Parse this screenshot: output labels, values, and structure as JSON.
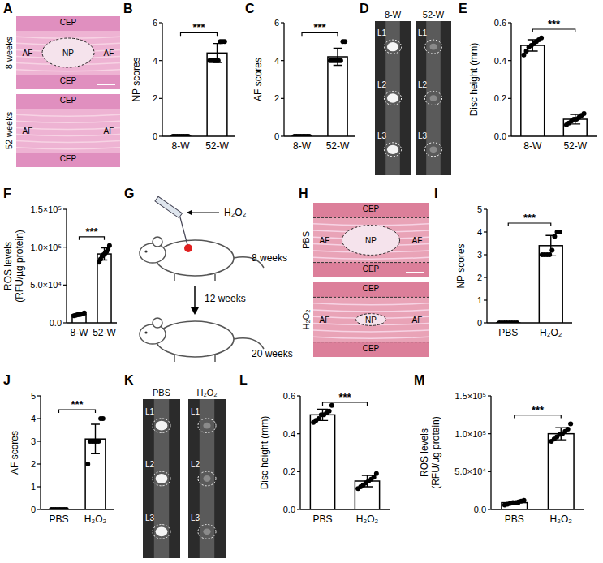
{
  "chart_data": [
    {
      "type": "bar",
      "panel": "B",
      "ylabel": "NP scores",
      "categories": [
        "8-W",
        "52-W"
      ],
      "values": [
        0,
        4.4
      ],
      "errors": [
        0,
        0.5
      ],
      "points": [
        [
          0,
          0,
          0,
          0,
          0,
          0,
          0,
          0
        ],
        [
          4,
          4,
          4,
          4,
          4,
          5,
          5,
          5
        ]
      ],
      "color": "#000000",
      "ylim": [
        0,
        6
      ],
      "yticks": [
        0,
        2,
        4,
        6
      ],
      "significance": "***"
    },
    {
      "type": "bar",
      "panel": "C",
      "ylabel": "AF scores",
      "categories": [
        "8-W",
        "52-W"
      ],
      "values": [
        0,
        4.2
      ],
      "errors": [
        0,
        0.45
      ],
      "points": [
        [
          0,
          0,
          0,
          0,
          0,
          0,
          0,
          0
        ],
        [
          4,
          4,
          4,
          4,
          4,
          4,
          5,
          5
        ]
      ],
      "color": "#000000",
      "ylim": [
        0,
        6
      ],
      "yticks": [
        0,
        2,
        4,
        6
      ],
      "significance": "***"
    },
    {
      "type": "bar",
      "panel": "E",
      "ylabel": "Disc height (mm)",
      "categories": [
        "8-W",
        "52-W"
      ],
      "values": [
        0.48,
        0.09
      ],
      "errors": [
        0.03,
        0.025
      ],
      "points": [
        [
          0.43,
          0.45,
          0.47,
          0.48,
          0.49,
          0.5,
          0.51,
          0.52
        ],
        [
          0.06,
          0.07,
          0.08,
          0.09,
          0.09,
          0.1,
          0.11,
          0.12
        ]
      ],
      "color": "#000000",
      "ylim": [
        0,
        0.6
      ],
      "yticks": [
        {
          "value": 0,
          "label": "0.0"
        },
        0.2,
        0.4,
        0.6
      ],
      "significance": "***"
    },
    {
      "type": "bar",
      "panel": "F",
      "ylabel": [
        "ROS levels",
        "(RFU/µg protein)"
      ],
      "categories": [
        "8-W",
        "52-W"
      ],
      "values": [
        11000,
        91000
      ],
      "errors": [
        1500,
        8000
      ],
      "points": [
        [
          9500,
          10000,
          10500,
          11000,
          11000,
          11500,
          12000,
          13000
        ],
        [
          80000,
          84000,
          88000,
          90000,
          92000,
          94000,
          97000,
          102000
        ]
      ],
      "color": "#000000",
      "ylim": [
        0,
        150000
      ],
      "yticks": [
        {
          "value": 0,
          "label": "0.0"
        },
        {
          "value": 50000,
          "label": "5.0×10⁴"
        },
        {
          "value": 100000,
          "label": "1.0×10⁵"
        },
        {
          "value": 150000,
          "label": "1.5×10⁵"
        }
      ],
      "significance": "***"
    },
    {
      "type": "bar",
      "panel": "I",
      "ylabel": "NP scores",
      "categories": [
        "PBS",
        "H₂O₂"
      ],
      "values": [
        0,
        3.4
      ],
      "errors": [
        0,
        0.45
      ],
      "points": [
        [
          0,
          0,
          0,
          0,
          0,
          0,
          0,
          0
        ],
        [
          3,
          3,
          3,
          3,
          3.2,
          3.8,
          4,
          4
        ]
      ],
      "color": "#000000",
      "ylim": [
        0,
        5
      ],
      "yticks": [
        0,
        1,
        2,
        3,
        4,
        5
      ],
      "significance": "***"
    },
    {
      "type": "bar",
      "panel": "J",
      "ylabel": "AF scores",
      "categories": [
        "PBS",
        "H₂O₂"
      ],
      "values": [
        0,
        3.1
      ],
      "errors": [
        0,
        0.65
      ],
      "points": [
        [
          0,
          0,
          0,
          0,
          0,
          0,
          0,
          0
        ],
        [
          2,
          3,
          3,
          3,
          3,
          3,
          4,
          4
        ]
      ],
      "color": "#000000",
      "ylim": [
        0,
        5
      ],
      "yticks": [
        0,
        1,
        2,
        3,
        4,
        5
      ],
      "significance": "***"
    },
    {
      "type": "bar",
      "panel": "L",
      "ylabel": "Disc height (mm)",
      "categories": [
        "PBS",
        "H₂O₂"
      ],
      "values": [
        0.5,
        0.15
      ],
      "errors": [
        0.03,
        0.03
      ],
      "points": [
        [
          0.46,
          0.47,
          0.48,
          0.5,
          0.5,
          0.51,
          0.52,
          0.55
        ],
        [
          0.11,
          0.12,
          0.13,
          0.14,
          0.15,
          0.16,
          0.17,
          0.19
        ]
      ],
      "color": "#000000",
      "ylim": [
        0,
        0.6
      ],
      "yticks": [
        {
          "value": 0,
          "label": "0.0"
        },
        0.2,
        0.4,
        0.6
      ],
      "significance": "***"
    },
    {
      "type": "bar",
      "panel": "M",
      "ylabel": [
        "ROS levels",
        "(RFU/µg protein)"
      ],
      "categories": [
        "PBS",
        "H₂O₂"
      ],
      "values": [
        9000,
        100000
      ],
      "errors": [
        2000,
        8000
      ],
      "points": [
        [
          6000,
          7000,
          8000,
          9000,
          9000,
          10000,
          11000,
          12000
        ],
        [
          90000,
          93000,
          96000,
          99000,
          100000,
          103000,
          106000,
          113000
        ]
      ],
      "color": "#000000",
      "ylim": [
        0,
        150000
      ],
      "yticks": [
        {
          "value": 0,
          "label": "0.0"
        },
        {
          "value": 50000,
          "label": "5.0×10⁴"
        },
        {
          "value": 100000,
          "label": "1.0×10⁵"
        },
        {
          "value": 150000,
          "label": "1.5×10⁵"
        }
      ],
      "significance": "***"
    }
  ],
  "image_panels": [
    {
      "panel": "A",
      "type": "histology",
      "rows": [
        {
          "label": "8 weeks",
          "regions": [
            "CEP",
            "AF",
            "NP",
            "AF",
            "CEP"
          ]
        },
        {
          "label": "52 weeks",
          "regions": [
            "CEP",
            "AF",
            "AF",
            "CEP"
          ]
        }
      ]
    },
    {
      "panel": "D",
      "type": "mri",
      "columns": [
        {
          "label": "8-W",
          "levels": [
            "L1",
            "L2",
            "L3"
          ]
        },
        {
          "label": "52-W",
          "levels": [
            "L1",
            "L2",
            "L3"
          ]
        }
      ]
    },
    {
      "panel": "G",
      "type": "schematic",
      "injection": "H₂O₂",
      "steps": [
        "8 weeks",
        "12 weeks",
        "20 weeks"
      ]
    },
    {
      "panel": "H",
      "type": "histology",
      "rows": [
        {
          "label": "PBS",
          "regions": [
            "CEP",
            "AF",
            "NP",
            "AF",
            "CEP"
          ]
        },
        {
          "label": "H₂O₂",
          "regions": [
            "CEP",
            "AF",
            "NP",
            "AF",
            "CEP"
          ]
        }
      ]
    },
    {
      "panel": "K",
      "type": "mri",
      "columns": [
        {
          "label": "PBS",
          "levels": [
            "L1",
            "L2",
            "L3"
          ]
        },
        {
          "label": "H₂O₂",
          "levels": [
            "L1",
            "L2",
            "L3"
          ]
        }
      ]
    }
  ]
}
